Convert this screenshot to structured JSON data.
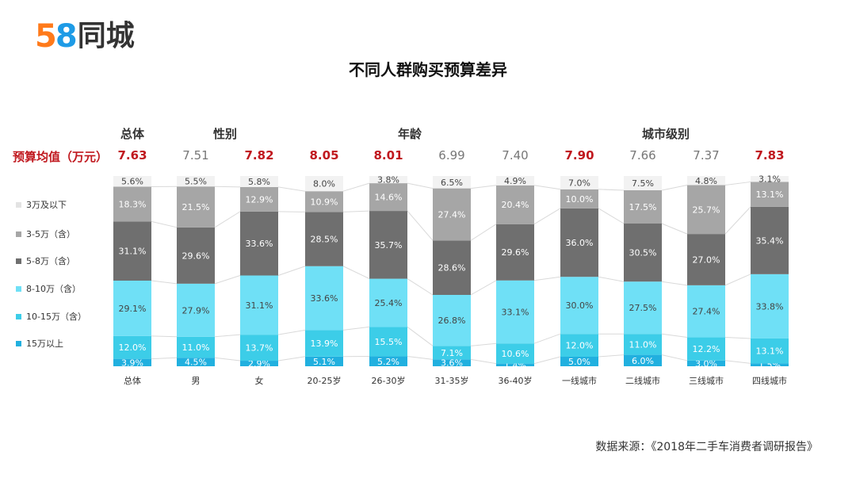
{
  "logo": {
    "digit1": "5",
    "digit2": "8",
    "text": "同城"
  },
  "header": {
    "title": "不同人群购买预算差异"
  },
  "groups": [
    {
      "label": "总体"
    },
    {
      "label": "性别"
    },
    {
      "label": "年龄"
    },
    {
      "label": "城市级别"
    }
  ],
  "avg_row": {
    "label": "预算均值（万元）",
    "values": [
      "7.63",
      "7.51",
      "7.82",
      "8.05",
      "8.01",
      "6.99",
      "7.40",
      "7.90",
      "7.66",
      "7.37",
      "7.83"
    ],
    "highlight": [
      true,
      false,
      true,
      true,
      true,
      false,
      false,
      true,
      false,
      false,
      true
    ]
  },
  "source": "数据来源：《2018年二手车消费者调研报告》",
  "colors": {
    "accent_red": "#c0181e",
    "seg_3wan": "#f2f2f2",
    "seg_3_5": "#a6a6a6",
    "seg_5_8": "#6f6f6f",
    "seg_8_10": "#6fe0f6",
    "seg_10_15": "#3ccde8",
    "seg_15": "#21b0df"
  },
  "chart_data": {
    "type": "bar",
    "stacked": true,
    "percent": true,
    "categories": [
      "总体",
      "男",
      "女",
      "20-25岁",
      "26-30岁",
      "31-35岁",
      "36-40岁",
      "一线城市",
      "二线城市",
      "三线城市",
      "四线城市"
    ],
    "series": [
      {
        "name": "15万以上",
        "values": [
          3.9,
          4.5,
          2.9,
          5.1,
          5.2,
          3.6,
          1.4,
          5.0,
          6.0,
          3.0,
          1.5
        ]
      },
      {
        "name": "10-15万（含）",
        "values": [
          12.0,
          11.0,
          13.7,
          13.9,
          15.5,
          7.1,
          10.6,
          12.0,
          11.0,
          12.2,
          13.1
        ]
      },
      {
        "name": "8-10万（含）",
        "values": [
          29.1,
          27.9,
          31.1,
          33.6,
          25.4,
          26.8,
          33.1,
          30.0,
          27.5,
          27.4,
          33.8
        ]
      },
      {
        "name": "5-8万（含）",
        "values": [
          31.1,
          29.6,
          33.6,
          28.5,
          35.7,
          28.6,
          29.6,
          36.0,
          30.5,
          27.0,
          35.4
        ]
      },
      {
        "name": "3-5万（含）",
        "values": [
          18.3,
          21.5,
          12.9,
          10.9,
          14.6,
          27.4,
          20.4,
          10.0,
          17.5,
          25.7,
          13.1
        ]
      },
      {
        "name": "3万及以下",
        "values": [
          5.6,
          5.5,
          5.8,
          8.0,
          3.8,
          6.5,
          4.9,
          7.0,
          7.5,
          4.8,
          3.1
        ]
      }
    ],
    "legend_order": [
      "3万及以下",
      "3-5万（含）",
      "5-8万（含）",
      "8-10万（含）",
      "10-15万（含）",
      "15万以上"
    ],
    "legend_position": "left",
    "ylim": [
      0,
      100
    ]
  }
}
